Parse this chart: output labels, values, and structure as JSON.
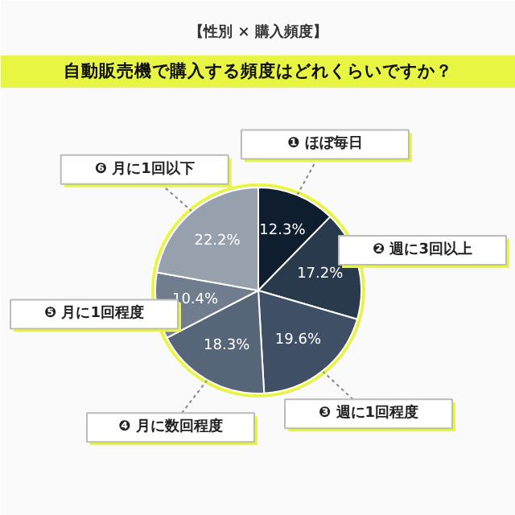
{
  "chart_data": {
    "type": "pie",
    "subtitle": "【性別 × 購入頻度】",
    "title": "自動販売機で購入する頻度はどれくらいですか？",
    "categories": [
      "❶ ほぼ毎日",
      "❷ 週に3回以上",
      "❸ 週に1回程度",
      "❹ 月に数回程度",
      "❺ 月に1回程度",
      "❻ 月に1回以下"
    ],
    "values": [
      12.3,
      17.2,
      19.6,
      18.3,
      10.4,
      22.2
    ],
    "colors": [
      "#0f1e2e",
      "#2a3a4d",
      "#3f5066",
      "#566578",
      "#6f7d8e",
      "#97a0ad"
    ],
    "value_labels": [
      "12.3%",
      "17.2%",
      "19.6%",
      "18.3%",
      "10.4%",
      "22.2%"
    ]
  }
}
